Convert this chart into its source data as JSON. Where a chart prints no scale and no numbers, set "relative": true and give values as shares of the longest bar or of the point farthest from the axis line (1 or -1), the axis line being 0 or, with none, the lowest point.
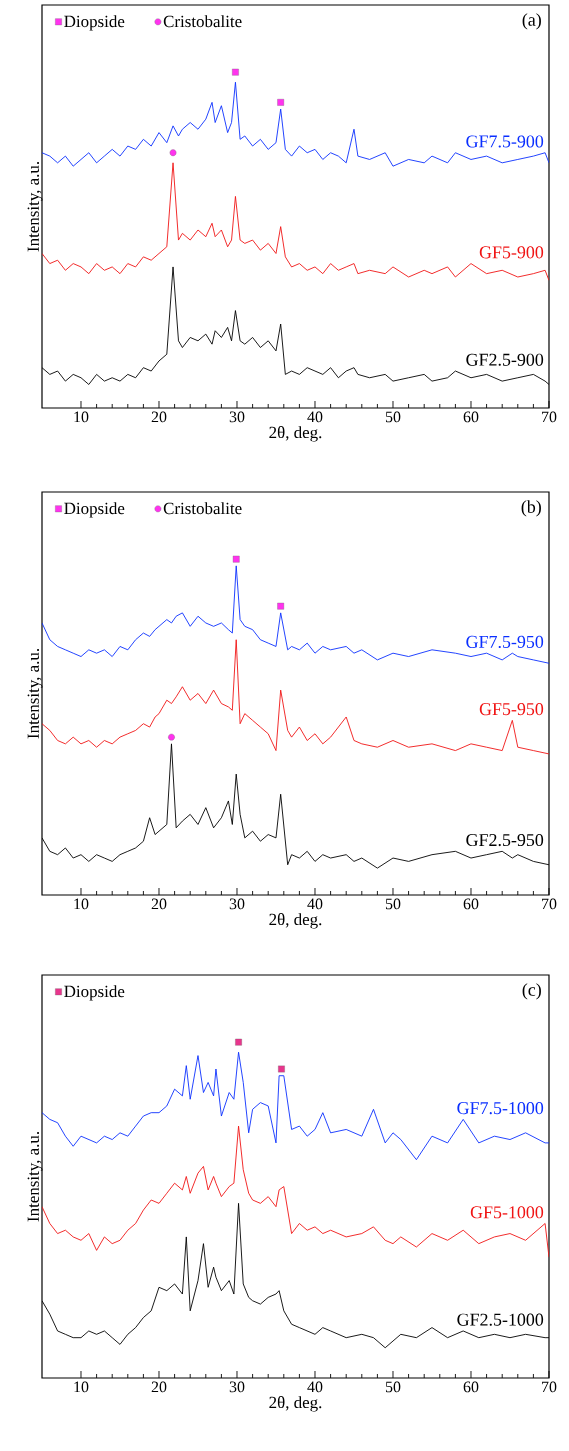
{
  "chart_data": [
    {
      "type": "line",
      "title": "(a)",
      "xlabel": "2θ, deg.",
      "ylabel": "Intensity, a.u.",
      "relative": true,
      "legend": "top left",
      "xlim": [
        5,
        70
      ],
      "xticks": [
        10,
        20,
        30,
        40,
        50,
        60,
        70
      ],
      "x": [
        5,
        6,
        7,
        8,
        9,
        10,
        11,
        12,
        13,
        14,
        15,
        16,
        17,
        18,
        19,
        20,
        21,
        21.8,
        22.5,
        23,
        24,
        25,
        26,
        26.8,
        27.2,
        28,
        28.8,
        29.3,
        29.8,
        30.4,
        31,
        32,
        33,
        34,
        35,
        35.6,
        36.2,
        37,
        38,
        39,
        40,
        41,
        42,
        43,
        44,
        45,
        45.5,
        47,
        49,
        50,
        52,
        54,
        55,
        57,
        58,
        60,
        62,
        64,
        66,
        68,
        69.5,
        70
      ],
      "series": [
        {
          "name": "GF7.5-900",
          "color": "#0a2fff",
          "values": [
            0.76,
            0.75,
            0.73,
            0.75,
            0.72,
            0.74,
            0.76,
            0.73,
            0.75,
            0.77,
            0.75,
            0.78,
            0.77,
            0.8,
            0.78,
            0.82,
            0.79,
            0.84,
            0.81,
            0.83,
            0.85,
            0.83,
            0.86,
            0.91,
            0.85,
            0.9,
            0.82,
            0.85,
            0.97,
            0.8,
            0.81,
            0.78,
            0.8,
            0.77,
            0.79,
            0.89,
            0.77,
            0.75,
            0.78,
            0.76,
            0.77,
            0.74,
            0.76,
            0.75,
            0.73,
            0.83,
            0.75,
            0.74,
            0.76,
            0.72,
            0.74,
            0.73,
            0.75,
            0.73,
            0.76,
            0.74,
            0.75,
            0.73,
            0.74,
            0.75,
            0.76,
            0.73
          ]
        },
        {
          "name": "GF5-900",
          "color": "#f01414",
          "values": [
            0.46,
            0.43,
            0.44,
            0.41,
            0.43,
            0.42,
            0.4,
            0.43,
            0.41,
            0.42,
            0.4,
            0.43,
            0.42,
            0.45,
            0.44,
            0.46,
            0.48,
            0.73,
            0.5,
            0.52,
            0.5,
            0.53,
            0.51,
            0.55,
            0.51,
            0.53,
            0.48,
            0.5,
            0.63,
            0.5,
            0.49,
            0.5,
            0.47,
            0.49,
            0.46,
            0.54,
            0.45,
            0.42,
            0.43,
            0.41,
            0.42,
            0.4,
            0.43,
            0.41,
            0.42,
            0.43,
            0.4,
            0.41,
            0.4,
            0.42,
            0.39,
            0.41,
            0.4,
            0.42,
            0.39,
            0.43,
            0.4,
            0.41,
            0.39,
            0.4,
            0.41,
            0.38
          ]
        },
        {
          "name": "GF2.5-900",
          "color": "#000000",
          "values": [
            0.12,
            0.1,
            0.11,
            0.08,
            0.1,
            0.09,
            0.07,
            0.1,
            0.08,
            0.09,
            0.08,
            0.1,
            0.09,
            0.12,
            0.11,
            0.14,
            0.16,
            0.42,
            0.2,
            0.18,
            0.21,
            0.2,
            0.22,
            0.19,
            0.23,
            0.21,
            0.24,
            0.2,
            0.29,
            0.2,
            0.19,
            0.21,
            0.18,
            0.2,
            0.17,
            0.25,
            0.1,
            0.11,
            0.1,
            0.12,
            0.11,
            0.1,
            0.12,
            0.09,
            0.11,
            0.12,
            0.1,
            0.09,
            0.1,
            0.08,
            0.09,
            0.1,
            0.08,
            0.09,
            0.11,
            0.09,
            0.1,
            0.08,
            0.09,
            0.1,
            0.08,
            0.07
          ]
        },
        {
          "name": "Diopside",
          "type": "scatter",
          "marker": "square",
          "color": "#ff33ee",
          "x": [
            29.8,
            35.6
          ],
          "values": [
            1.0,
            0.91
          ]
        },
        {
          "name": "Cristobalite",
          "type": "scatter",
          "marker": "circle",
          "color": "#ff33ee",
          "x": [
            21.8
          ],
          "values": [
            0.76
          ]
        }
      ]
    },
    {
      "type": "line",
      "title": "(b)",
      "xlabel": "2θ, deg.",
      "ylabel": "Intensity, a.u.",
      "relative": true,
      "legend": "top left",
      "xlim": [
        5,
        70
      ],
      "xticks": [
        10,
        20,
        30,
        40,
        50,
        60,
        70
      ],
      "x": [
        5,
        6,
        7,
        8,
        9,
        10,
        11,
        12,
        13,
        14,
        15,
        16,
        17,
        18,
        18.8,
        19.5,
        20,
        21,
        21.6,
        22.2,
        23,
        24,
        25,
        26,
        27,
        28,
        28.9,
        29.4,
        29.9,
        30.4,
        31,
        32,
        33,
        34,
        35,
        35.6,
        36.5,
        37,
        38,
        39,
        40,
        41,
        42,
        44,
        45,
        46,
        48,
        50,
        52,
        55,
        58,
        60,
        62,
        64,
        65.3,
        66,
        68,
        70
      ],
      "series": [
        {
          "name": "GF7.5-950",
          "color": "#0a2fff",
          "values": [
            0.81,
            0.76,
            0.74,
            0.73,
            0.72,
            0.71,
            0.73,
            0.72,
            0.73,
            0.71,
            0.74,
            0.73,
            0.76,
            0.78,
            0.77,
            0.79,
            0.8,
            0.82,
            0.81,
            0.83,
            0.84,
            0.8,
            0.83,
            0.81,
            0.8,
            0.81,
            0.79,
            0.78,
            0.98,
            0.82,
            0.8,
            0.79,
            0.76,
            0.75,
            0.74,
            0.84,
            0.73,
            0.74,
            0.73,
            0.75,
            0.72,
            0.74,
            0.73,
            0.74,
            0.72,
            0.73,
            0.7,
            0.72,
            0.71,
            0.73,
            0.72,
            0.71,
            0.72,
            0.7,
            0.72,
            0.71,
            0.7,
            0.69
          ]
        },
        {
          "name": "GF5-950",
          "color": "#f01414",
          "values": [
            0.51,
            0.49,
            0.46,
            0.45,
            0.47,
            0.45,
            0.46,
            0.44,
            0.46,
            0.45,
            0.47,
            0.48,
            0.49,
            0.51,
            0.5,
            0.53,
            0.54,
            0.58,
            0.57,
            0.59,
            0.62,
            0.58,
            0.6,
            0.57,
            0.61,
            0.57,
            0.56,
            0.55,
            0.76,
            0.51,
            0.54,
            0.52,
            0.5,
            0.48,
            0.43,
            0.61,
            0.49,
            0.47,
            0.5,
            0.46,
            0.48,
            0.45,
            0.47,
            0.53,
            0.46,
            0.45,
            0.44,
            0.46,
            0.44,
            0.45,
            0.43,
            0.45,
            0.44,
            0.43,
            0.52,
            0.44,
            0.43,
            0.42
          ]
        },
        {
          "name": "GF2.5-950",
          "color": "#000000",
          "values": [
            0.17,
            0.13,
            0.12,
            0.14,
            0.11,
            0.12,
            0.1,
            0.12,
            0.11,
            0.1,
            0.12,
            0.13,
            0.14,
            0.16,
            0.23,
            0.18,
            0.19,
            0.21,
            0.45,
            0.2,
            0.22,
            0.24,
            0.21,
            0.26,
            0.2,
            0.23,
            0.28,
            0.21,
            0.36,
            0.24,
            0.17,
            0.19,
            0.16,
            0.18,
            0.17,
            0.3,
            0.09,
            0.12,
            0.11,
            0.13,
            0.1,
            0.12,
            0.11,
            0.12,
            0.1,
            0.11,
            0.08,
            0.11,
            0.1,
            0.12,
            0.13,
            0.11,
            0.12,
            0.13,
            0.11,
            0.12,
            0.1,
            0.09
          ]
        },
        {
          "name": "Diopside",
          "type": "scatter",
          "marker": "square",
          "color": "#ff33ee",
          "x": [
            29.9,
            35.6
          ],
          "values": [
            1.0,
            0.86
          ]
        },
        {
          "name": "Cristobalite",
          "type": "scatter",
          "marker": "circle",
          "color": "#ff33ee",
          "x": [
            21.6
          ],
          "values": [
            0.47
          ]
        }
      ]
    },
    {
      "type": "line",
      "title": "(c)",
      "xlabel": "2θ, deg.",
      "ylabel": "Intensity, a.u.",
      "relative": true,
      "legend": "top left",
      "xlim": [
        5,
        70
      ],
      "xticks": [
        10,
        20,
        30,
        40,
        50,
        60,
        70
      ],
      "x": [
        5,
        6,
        7,
        8,
        9,
        10,
        11,
        12,
        13,
        14,
        15,
        16,
        17,
        18,
        19,
        20,
        21,
        22,
        23,
        23.5,
        24,
        25,
        25.7,
        26.3,
        27,
        27.3,
        28,
        29,
        29.6,
        30.2,
        30.8,
        31.5,
        32,
        33,
        34,
        35,
        35.4,
        36,
        37,
        38,
        39,
        40,
        41,
        42,
        44,
        46,
        47.5,
        49,
        50,
        51,
        53,
        55,
        57,
        59,
        61,
        63,
        65,
        67,
        69.5,
        70
      ],
      "series": [
        {
          "name": "GF7.5-1000",
          "color": "#0a2fff",
          "values": [
            0.79,
            0.77,
            0.76,
            0.72,
            0.69,
            0.72,
            0.71,
            0.7,
            0.72,
            0.71,
            0.73,
            0.72,
            0.75,
            0.78,
            0.79,
            0.79,
            0.81,
            0.86,
            0.84,
            0.93,
            0.83,
            0.96,
            0.85,
            0.88,
            0.84,
            0.92,
            0.78,
            0.85,
            0.83,
            0.97,
            0.88,
            0.73,
            0.8,
            0.82,
            0.81,
            0.7,
            0.9,
            0.9,
            0.74,
            0.75,
            0.72,
            0.74,
            0.79,
            0.73,
            0.74,
            0.72,
            0.8,
            0.7,
            0.73,
            0.71,
            0.65,
            0.72,
            0.7,
            0.77,
            0.7,
            0.72,
            0.71,
            0.73,
            0.7,
            0.7
          ]
        },
        {
          "name": "GF5-1000",
          "color": "#f01414",
          "values": [
            0.51,
            0.46,
            0.43,
            0.44,
            0.42,
            0.41,
            0.43,
            0.38,
            0.42,
            0.4,
            0.41,
            0.44,
            0.46,
            0.5,
            0.53,
            0.52,
            0.55,
            0.58,
            0.56,
            0.6,
            0.55,
            0.61,
            0.63,
            0.56,
            0.6,
            0.58,
            0.54,
            0.57,
            0.58,
            0.75,
            0.62,
            0.55,
            0.53,
            0.52,
            0.54,
            0.51,
            0.56,
            0.57,
            0.43,
            0.46,
            0.44,
            0.45,
            0.43,
            0.44,
            0.42,
            0.43,
            0.45,
            0.41,
            0.4,
            0.42,
            0.39,
            0.43,
            0.41,
            0.44,
            0.4,
            0.42,
            0.43,
            0.41,
            0.46,
            0.36
          ]
        },
        {
          "name": "GF2.5-1000",
          "color": "#000000",
          "values": [
            0.23,
            0.19,
            0.14,
            0.13,
            0.12,
            0.12,
            0.14,
            0.13,
            0.14,
            0.12,
            0.1,
            0.13,
            0.15,
            0.18,
            0.2,
            0.27,
            0.26,
            0.28,
            0.25,
            0.42,
            0.2,
            0.29,
            0.4,
            0.27,
            0.33,
            0.3,
            0.26,
            0.29,
            0.25,
            0.52,
            0.28,
            0.24,
            0.23,
            0.22,
            0.24,
            0.25,
            0.26,
            0.2,
            0.16,
            0.15,
            0.14,
            0.13,
            0.15,
            0.14,
            0.12,
            0.13,
            0.12,
            0.09,
            0.11,
            0.13,
            0.12,
            0.15,
            0.12,
            0.14,
            0.12,
            0.13,
            0.12,
            0.13,
            0.12,
            0.12
          ]
        },
        {
          "name": "Diopside",
          "type": "scatter",
          "marker": "square",
          "color": "#e8358c",
          "x": [
            30.2,
            35.7
          ],
          "values": [
            1.0,
            0.92
          ]
        }
      ]
    }
  ]
}
